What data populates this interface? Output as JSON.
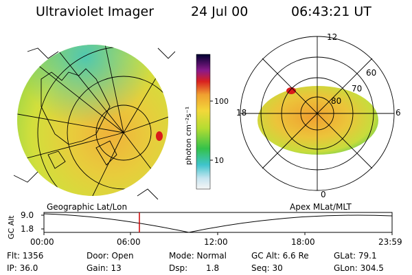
{
  "header": {
    "title": "Ultraviolet Imager",
    "date": "24 Jul 00",
    "time": "06:43:21 UT"
  },
  "colorbar": {
    "unit_label": "photon cm⁻²s⁻¹",
    "ticks": [
      "100",
      "10"
    ]
  },
  "polar_plot": {
    "mlt_labels": [
      "12",
      "18",
      "6",
      "0"
    ],
    "mlat_labels": [
      "60",
      "70",
      "80"
    ]
  },
  "panel_labels": {
    "left": "Geographic Lat/Lon",
    "right": "Apex MLat/MLT"
  },
  "altitude_plot": {
    "ylabel": "GC Alt",
    "yticks": [
      "9.0",
      "1.8"
    ],
    "xticks": [
      "00:00",
      "06:00",
      "12:00",
      "18:00",
      "23:59"
    ]
  },
  "status": {
    "flt": "Flt: 1356",
    "ip": "IP: 36.0",
    "door": "Door: Open",
    "gain": "Gain: 13",
    "mode": "Mode: Normal",
    "dsp_label": "Dsp:",
    "dsp_value": "1.8",
    "gc_alt": "GC Alt: 6.6 Re",
    "seq": "Seq: 30",
    "glat": "GLat: 79.1",
    "glon": "GLon: 304.5"
  },
  "colors": {
    "marker": "#cc0000",
    "background": "#ffffff",
    "foreground": "#000000"
  }
}
